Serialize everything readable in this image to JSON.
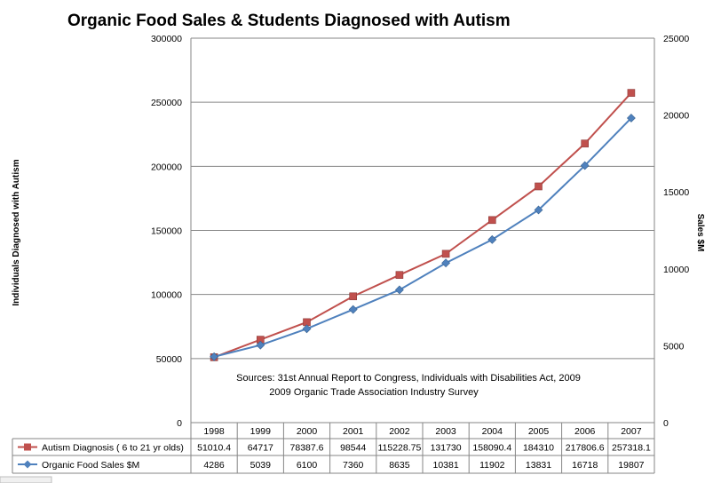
{
  "chart_data": {
    "type": "line",
    "title": "Organic Food Sales & Students Diagnosed with Autism",
    "ylabel_left": "Individuals Diagnosed with Autism",
    "ylabel_right": "Sales $M",
    "ylim_left": [
      0,
      300000
    ],
    "ylim_right": [
      0,
      25000
    ],
    "yticks_left": [
      "0",
      "50000",
      "100000",
      "150000",
      "200000",
      "250000",
      "300000"
    ],
    "yticks_right": [
      "0",
      "5000",
      "10000",
      "15000",
      "20000",
      "25000"
    ],
    "categories": [
      "1998",
      "1999",
      "2000",
      "2001",
      "2002",
      "2003",
      "2004",
      "2005",
      "2006",
      "2007"
    ],
    "series": [
      {
        "name": "Autism Diagnosis ( 6 to 21 yr olds)",
        "axis": "left",
        "color": "#C0504D",
        "marker": "square",
        "values": [
          51010.4,
          64717,
          78387.6,
          98544,
          115228.75,
          131730,
          158090.4,
          184310,
          217806.6,
          257318.1
        ],
        "labels": [
          "51010.4",
          "64717",
          "78387.6",
          "98544",
          "115228.75",
          "131730",
          "158090.4",
          "184310",
          "217806.6",
          "257318.1"
        ]
      },
      {
        "name": "Organic Food Sales $M",
        "axis": "right",
        "color": "#4F81BD",
        "marker": "diamond",
        "values": [
          4286,
          5039,
          6100,
          7360,
          8635,
          10381,
          11902,
          13831,
          16718,
          19807
        ],
        "labels": [
          "4286",
          "5039",
          "6100",
          "7360",
          "8635",
          "10381",
          "11902",
          "13831",
          "16718",
          "19807"
        ]
      }
    ],
    "grid": true,
    "legend": "data-table",
    "annotation": [
      "Sources: 31st Annual Report to Congress, Individuals with Disabilities Act, 2009",
      "2009 Organic Trade Association Industry Survey"
    ]
  }
}
